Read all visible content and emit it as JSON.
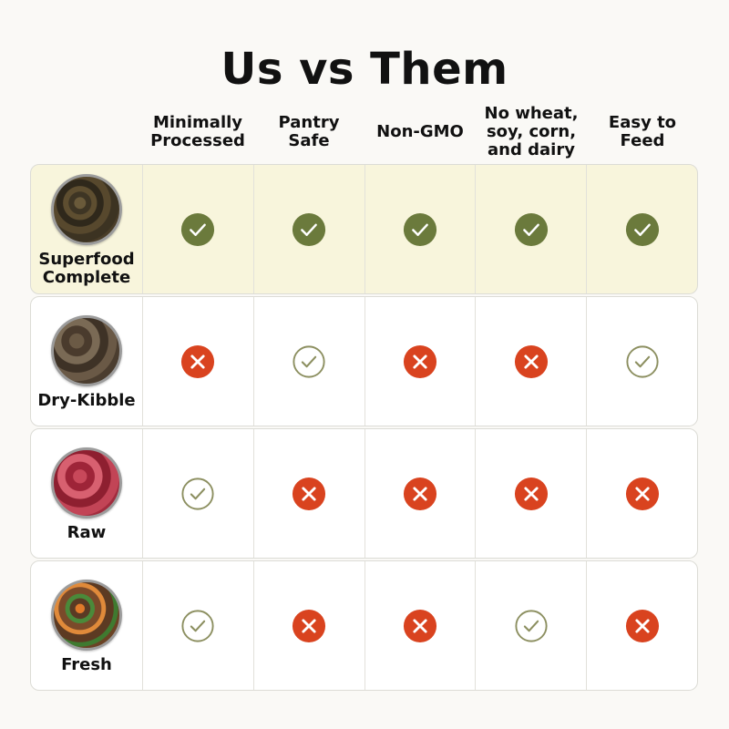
{
  "title": "Us vs Them",
  "columns": [
    "Minimally\nProcessed",
    "Pantry\nSafe",
    "Non-GMO",
    "No wheat,\nsoy, corn,\nand dairy",
    "Easy to\nFeed"
  ],
  "colors": {
    "check_filled": "#6b7a3c",
    "check_outline": "#8c8f60",
    "cross": "#d9431f",
    "highlight_row": "#f8f5dc"
  },
  "rows": [
    {
      "name": "Superfood\nComplete",
      "image_icon": "superfood-bowl",
      "values": [
        "check-filled",
        "check-filled",
        "check-filled",
        "check-filled",
        "check-filled"
      ]
    },
    {
      "name": "Dry-Kibble",
      "image_icon": "kibble-bowl",
      "values": [
        "cross",
        "check-outline",
        "cross",
        "cross",
        "check-outline"
      ]
    },
    {
      "name": "Raw",
      "image_icon": "raw-meat-bowl",
      "values": [
        "check-outline",
        "cross",
        "cross",
        "cross",
        "cross"
      ]
    },
    {
      "name": "Fresh",
      "image_icon": "fresh-food-bowl",
      "values": [
        "check-outline",
        "cross",
        "cross",
        "check-outline",
        "cross"
      ]
    }
  ]
}
